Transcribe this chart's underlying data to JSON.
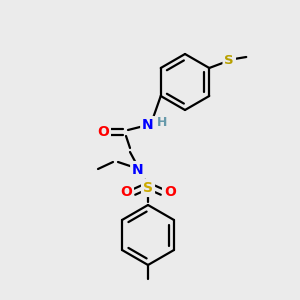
{
  "background_color": "#ebebeb",
  "atom_colors": {
    "C": "#000000",
    "N": "#0000ff",
    "O": "#ff0000",
    "S_thio": "#b8a000",
    "S_sulfonyl": "#ccaa00",
    "H": "#6699aa"
  },
  "bond_color": "#000000",
  "figsize": [
    3.0,
    3.0
  ],
  "dpi": 100,
  "lw": 1.6
}
